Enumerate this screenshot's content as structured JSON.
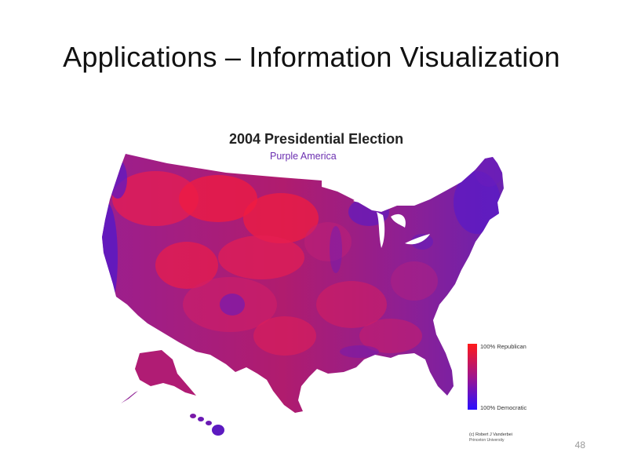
{
  "slide": {
    "title": "Applications – Information Visualization",
    "page_number": "48"
  },
  "map": {
    "title": "2004 Presidential Election",
    "subtitle": "Purple America",
    "legend": {
      "top_label": "100% Republican",
      "bottom_label": "100% Democratic",
      "top_color": "#ff1a1a",
      "bottom_color": "#2a10ff"
    },
    "credit_line1": "(c) Robert J Vanderbei",
    "credit_line2": "Princeton University",
    "colors": {
      "base": "#8e1f93",
      "republican": "#ee1e4a",
      "democratic": "#4a1ad2"
    }
  }
}
